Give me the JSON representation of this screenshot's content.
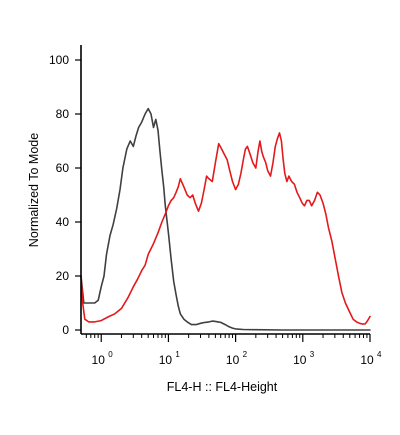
{
  "chart_data": {
    "type": "line",
    "title": "",
    "xlabel": "FL4-H :: FL4-Height",
    "ylabel": "Normalized To Mode",
    "xscale": "log",
    "xlim": [
      0.5,
      10000
    ],
    "ylim": [
      0,
      100
    ],
    "x_ticks": [
      {
        "value": 1,
        "base": "10",
        "exp": "0"
      },
      {
        "value": 10,
        "base": "10",
        "exp": "1"
      },
      {
        "value": 100,
        "base": "10",
        "exp": "2"
      },
      {
        "value": 1000,
        "base": "10",
        "exp": "3"
      },
      {
        "value": 10000,
        "base": "10",
        "exp": "4"
      }
    ],
    "y_ticks": [
      {
        "value": 0,
        "label": "0"
      },
      {
        "value": 20,
        "label": "20"
      },
      {
        "value": 40,
        "label": "40"
      },
      {
        "value": 60,
        "label": "60"
      },
      {
        "value": 80,
        "label": "80"
      },
      {
        "value": 100,
        "label": "100"
      }
    ],
    "grid": false,
    "legend": "none",
    "series": [
      {
        "color": "#404040",
        "points": [
          [
            0.5,
            20
          ],
          [
            0.55,
            10
          ],
          [
            0.6,
            10
          ],
          [
            0.7,
            10
          ],
          [
            0.8,
            10
          ],
          [
            0.9,
            11
          ],
          [
            1.0,
            16
          ],
          [
            1.1,
            20
          ],
          [
            1.2,
            28
          ],
          [
            1.35,
            35
          ],
          [
            1.5,
            39
          ],
          [
            1.7,
            45
          ],
          [
            1.9,
            52
          ],
          [
            2.1,
            60
          ],
          [
            2.4,
            67
          ],
          [
            2.7,
            70
          ],
          [
            3.0,
            68
          ],
          [
            3.3,
            72
          ],
          [
            3.6,
            75
          ],
          [
            4.0,
            77
          ],
          [
            4.5,
            80
          ],
          [
            5.0,
            82
          ],
          [
            5.5,
            80
          ],
          [
            6.0,
            75
          ],
          [
            6.5,
            78
          ],
          [
            7.0,
            74
          ],
          [
            7.5,
            66
          ],
          [
            8.0,
            59
          ],
          [
            8.5,
            53
          ],
          [
            9.0,
            46
          ],
          [
            10,
            36
          ],
          [
            11,
            26
          ],
          [
            12,
            18
          ],
          [
            13,
            13
          ],
          [
            14,
            9
          ],
          [
            15,
            6
          ],
          [
            17,
            4
          ],
          [
            19,
            3
          ],
          [
            22,
            2
          ],
          [
            26,
            2
          ],
          [
            30,
            2.5
          ],
          [
            35,
            2.8
          ],
          [
            40,
            3
          ],
          [
            45,
            3.3
          ],
          [
            50,
            3.2
          ],
          [
            55,
            3
          ],
          [
            60,
            2.8
          ],
          [
            70,
            2
          ],
          [
            80,
            1.2
          ],
          [
            90,
            0.7
          ],
          [
            100,
            0.4
          ],
          [
            130,
            0.2
          ],
          [
            200,
            0.1
          ],
          [
            500,
            0
          ],
          [
            10000,
            0
          ]
        ]
      },
      {
        "color": "#e31a1c",
        "points": [
          [
            0.5,
            20
          ],
          [
            0.53,
            10
          ],
          [
            0.57,
            4
          ],
          [
            0.65,
            3
          ],
          [
            0.8,
            3
          ],
          [
            1.0,
            3.5
          ],
          [
            1.3,
            5
          ],
          [
            1.6,
            6
          ],
          [
            2.0,
            8
          ],
          [
            2.5,
            12
          ],
          [
            3.0,
            16
          ],
          [
            3.5,
            19
          ],
          [
            4.0,
            22
          ],
          [
            4.5,
            24
          ],
          [
            5.0,
            28
          ],
          [
            6.0,
            32
          ],
          [
            7.0,
            36
          ],
          [
            8.0,
            40
          ],
          [
            9.0,
            43
          ],
          [
            10,
            46
          ],
          [
            11,
            48
          ],
          [
            12,
            49
          ],
          [
            13,
            51
          ],
          [
            14,
            53
          ],
          [
            15,
            56
          ],
          [
            17,
            53
          ],
          [
            19,
            50
          ],
          [
            21,
            49
          ],
          [
            23,
            50
          ],
          [
            25,
            47
          ],
          [
            28,
            44
          ],
          [
            31,
            47
          ],
          [
            34,
            52
          ],
          [
            37,
            57
          ],
          [
            40,
            56
          ],
          [
            45,
            55
          ],
          [
            50,
            62
          ],
          [
            56,
            69
          ],
          [
            62,
            67
          ],
          [
            68,
            65
          ],
          [
            75,
            63
          ],
          [
            80,
            60
          ],
          [
            90,
            55
          ],
          [
            100,
            52
          ],
          [
            110,
            54
          ],
          [
            120,
            58
          ],
          [
            130,
            63
          ],
          [
            140,
            67
          ],
          [
            150,
            68
          ],
          [
            165,
            65
          ],
          [
            180,
            62
          ],
          [
            200,
            60
          ],
          [
            215,
            66
          ],
          [
            230,
            70
          ],
          [
            245,
            66
          ],
          [
            260,
            64
          ],
          [
            280,
            62
          ],
          [
            300,
            59
          ],
          [
            330,
            57
          ],
          [
            360,
            62
          ],
          [
            390,
            68
          ],
          [
            420,
            71
          ],
          [
            450,
            73
          ],
          [
            480,
            70
          ],
          [
            510,
            63
          ],
          [
            540,
            58
          ],
          [
            580,
            55
          ],
          [
            620,
            57
          ],
          [
            680,
            55
          ],
          [
            750,
            54
          ],
          [
            820,
            51
          ],
          [
            900,
            49
          ],
          [
            980,
            47
          ],
          [
            1060,
            46
          ],
          [
            1150,
            48
          ],
          [
            1250,
            48
          ],
          [
            1350,
            46
          ],
          [
            1500,
            48
          ],
          [
            1650,
            51
          ],
          [
            1800,
            50
          ],
          [
            2000,
            47
          ],
          [
            2200,
            43
          ],
          [
            2400,
            38
          ],
          [
            2700,
            33
          ],
          [
            3000,
            27
          ],
          [
            3400,
            20
          ],
          [
            3800,
            14
          ],
          [
            4300,
            10
          ],
          [
            4900,
            7
          ],
          [
            5600,
            4
          ],
          [
            6300,
            3
          ],
          [
            7000,
            2.5
          ],
          [
            7800,
            2.2
          ],
          [
            8500,
            2.3
          ],
          [
            9200,
            3.5
          ],
          [
            10000,
            5
          ]
        ]
      }
    ]
  }
}
